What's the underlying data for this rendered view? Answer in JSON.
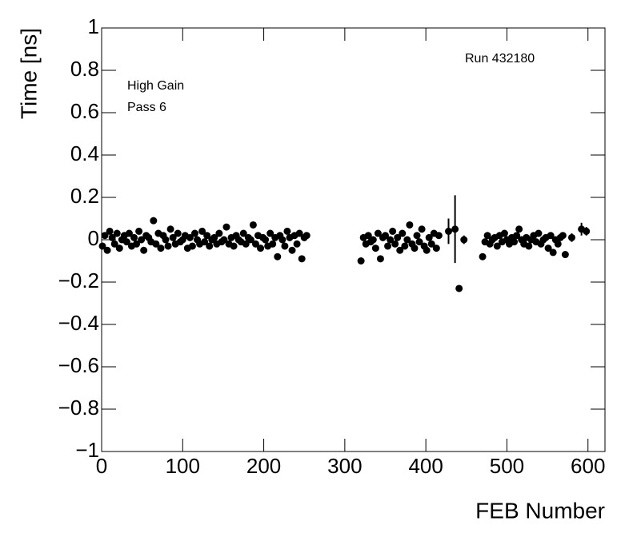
{
  "chart_data": {
    "type": "scatter",
    "xlabel": "FEB Number",
    "ylabel": "Time [ns]",
    "annotations": [
      "Run 432180",
      "High Gain",
      "Pass 6"
    ],
    "xlim": [
      0,
      621
    ],
    "ylim": [
      -1,
      1
    ],
    "xticks": [
      0,
      100,
      200,
      300,
      400,
      500,
      600
    ],
    "yticks": [
      {
        "value": -1,
        "label": "−1"
      },
      {
        "value": -0.8,
        "label": "−0.8"
      },
      {
        "value": -0.6,
        "label": "−0.6"
      },
      {
        "value": -0.4,
        "label": "−0.4"
      },
      {
        "value": -0.2,
        "label": "−0.2"
      },
      0,
      0.2,
      0.4,
      0.6,
      0.8,
      1
    ],
    "color": "#000000",
    "series": [
      {
        "x": [
          1,
          4,
          7,
          10,
          13,
          16,
          19,
          22,
          25,
          28,
          31,
          34,
          37,
          40,
          43,
          46,
          49,
          52,
          55,
          58,
          61,
          64,
          67,
          70,
          73,
          76,
          79,
          82,
          85,
          88,
          91,
          94,
          97,
          100,
          103,
          106,
          109,
          112,
          115,
          118,
          121,
          124,
          127,
          130,
          133,
          136,
          139,
          142,
          145,
          148,
          151,
          154,
          157,
          160,
          163,
          166,
          169,
          172,
          175,
          178,
          181,
          184,
          187,
          190,
          193,
          196,
          199,
          202,
          205,
          208,
          211,
          214,
          217,
          220,
          223,
          226,
          229,
          232,
          235,
          238,
          241,
          244,
          247,
          250,
          253,
          320,
          323,
          326,
          329,
          332,
          335,
          338,
          341,
          344,
          347,
          350,
          353,
          356,
          359,
          362,
          365,
          368,
          371,
          374,
          377,
          380,
          383,
          386,
          389,
          392,
          395,
          398,
          401,
          404,
          407,
          410,
          413,
          416,
          470,
          473,
          476,
          479,
          482,
          485,
          488,
          491,
          494,
          497,
          500,
          503,
          506,
          509,
          512,
          515,
          518,
          521,
          524,
          527,
          530,
          533,
          536,
          539,
          542,
          545,
          548,
          551,
          554,
          557,
          560,
          563,
          566,
          569,
          572
        ],
        "values": [
          -0.03,
          0.02,
          -0.05,
          0.04,
          0.01,
          -0.02,
          0.03,
          -0.04,
          0.0,
          0.02,
          -0.01,
          0.03,
          -0.03,
          0.01,
          -0.02,
          0.04,
          0.0,
          -0.05,
          0.02,
          0.01,
          -0.01,
          0.09,
          -0.02,
          0.03,
          -0.04,
          0.02,
          0.0,
          -0.03,
          0.05,
          0.01,
          -0.02,
          0.03,
          -0.01,
          0.0,
          0.02,
          -0.04,
          0.01,
          -0.03,
          0.03,
          0.0,
          -0.02,
          0.04,
          -0.01,
          0.02,
          -0.03,
          0.0,
          0.01,
          -0.02,
          0.03,
          -0.01,
          0.0,
          0.06,
          -0.02,
          0.01,
          -0.03,
          0.02,
          0.0,
          -0.01,
          0.03,
          -0.02,
          0.01,
          0.0,
          0.07,
          -0.02,
          0.02,
          -0.04,
          0.01,
          0.0,
          -0.03,
          0.03,
          -0.02,
          0.01,
          -0.08,
          0.02,
          0.0,
          -0.03,
          0.04,
          0.01,
          -0.05,
          0.02,
          -0.02,
          0.03,
          -0.09,
          0.01,
          0.02,
          -0.1,
          0.01,
          -0.02,
          0.02,
          -0.01,
          0.0,
          -0.04,
          0.03,
          -0.09,
          0.01,
          0.02,
          -0.03,
          0.0,
          0.04,
          -0.02,
          0.01,
          -0.05,
          0.03,
          -0.03,
          0.0,
          0.07,
          -0.02,
          -0.04,
          0.02,
          -0.01,
          0.05,
          -0.03,
          -0.05,
          0.01,
          -0.02,
          0.03,
          -0.04,
          0.02,
          -0.08,
          -0.01,
          0.02,
          -0.02,
          0.0,
          0.01,
          -0.03,
          0.02,
          -0.01,
          0.03,
          0.0,
          -0.02,
          0.01,
          -0.01,
          0.02,
          0.05,
          0.0,
          -0.02,
          0.01,
          -0.03,
          0.0,
          0.02,
          -0.01,
          0.03,
          -0.02,
          0.0,
          0.01,
          -0.04,
          0.02,
          -0.06,
          0.0,
          -0.02,
          0.01,
          0.02,
          -0.07
        ]
      },
      {
        "x": [
          428,
          436,
          441,
          447,
          580,
          592,
          598
        ],
        "values": [
          0.04,
          0.05,
          -0.23,
          0.0,
          0.01,
          0.05,
          0.04
        ],
        "errors": [
          0.06,
          0.16,
          0.01,
          0.02,
          0.02,
          0.03,
          0.02
        ]
      }
    ]
  }
}
